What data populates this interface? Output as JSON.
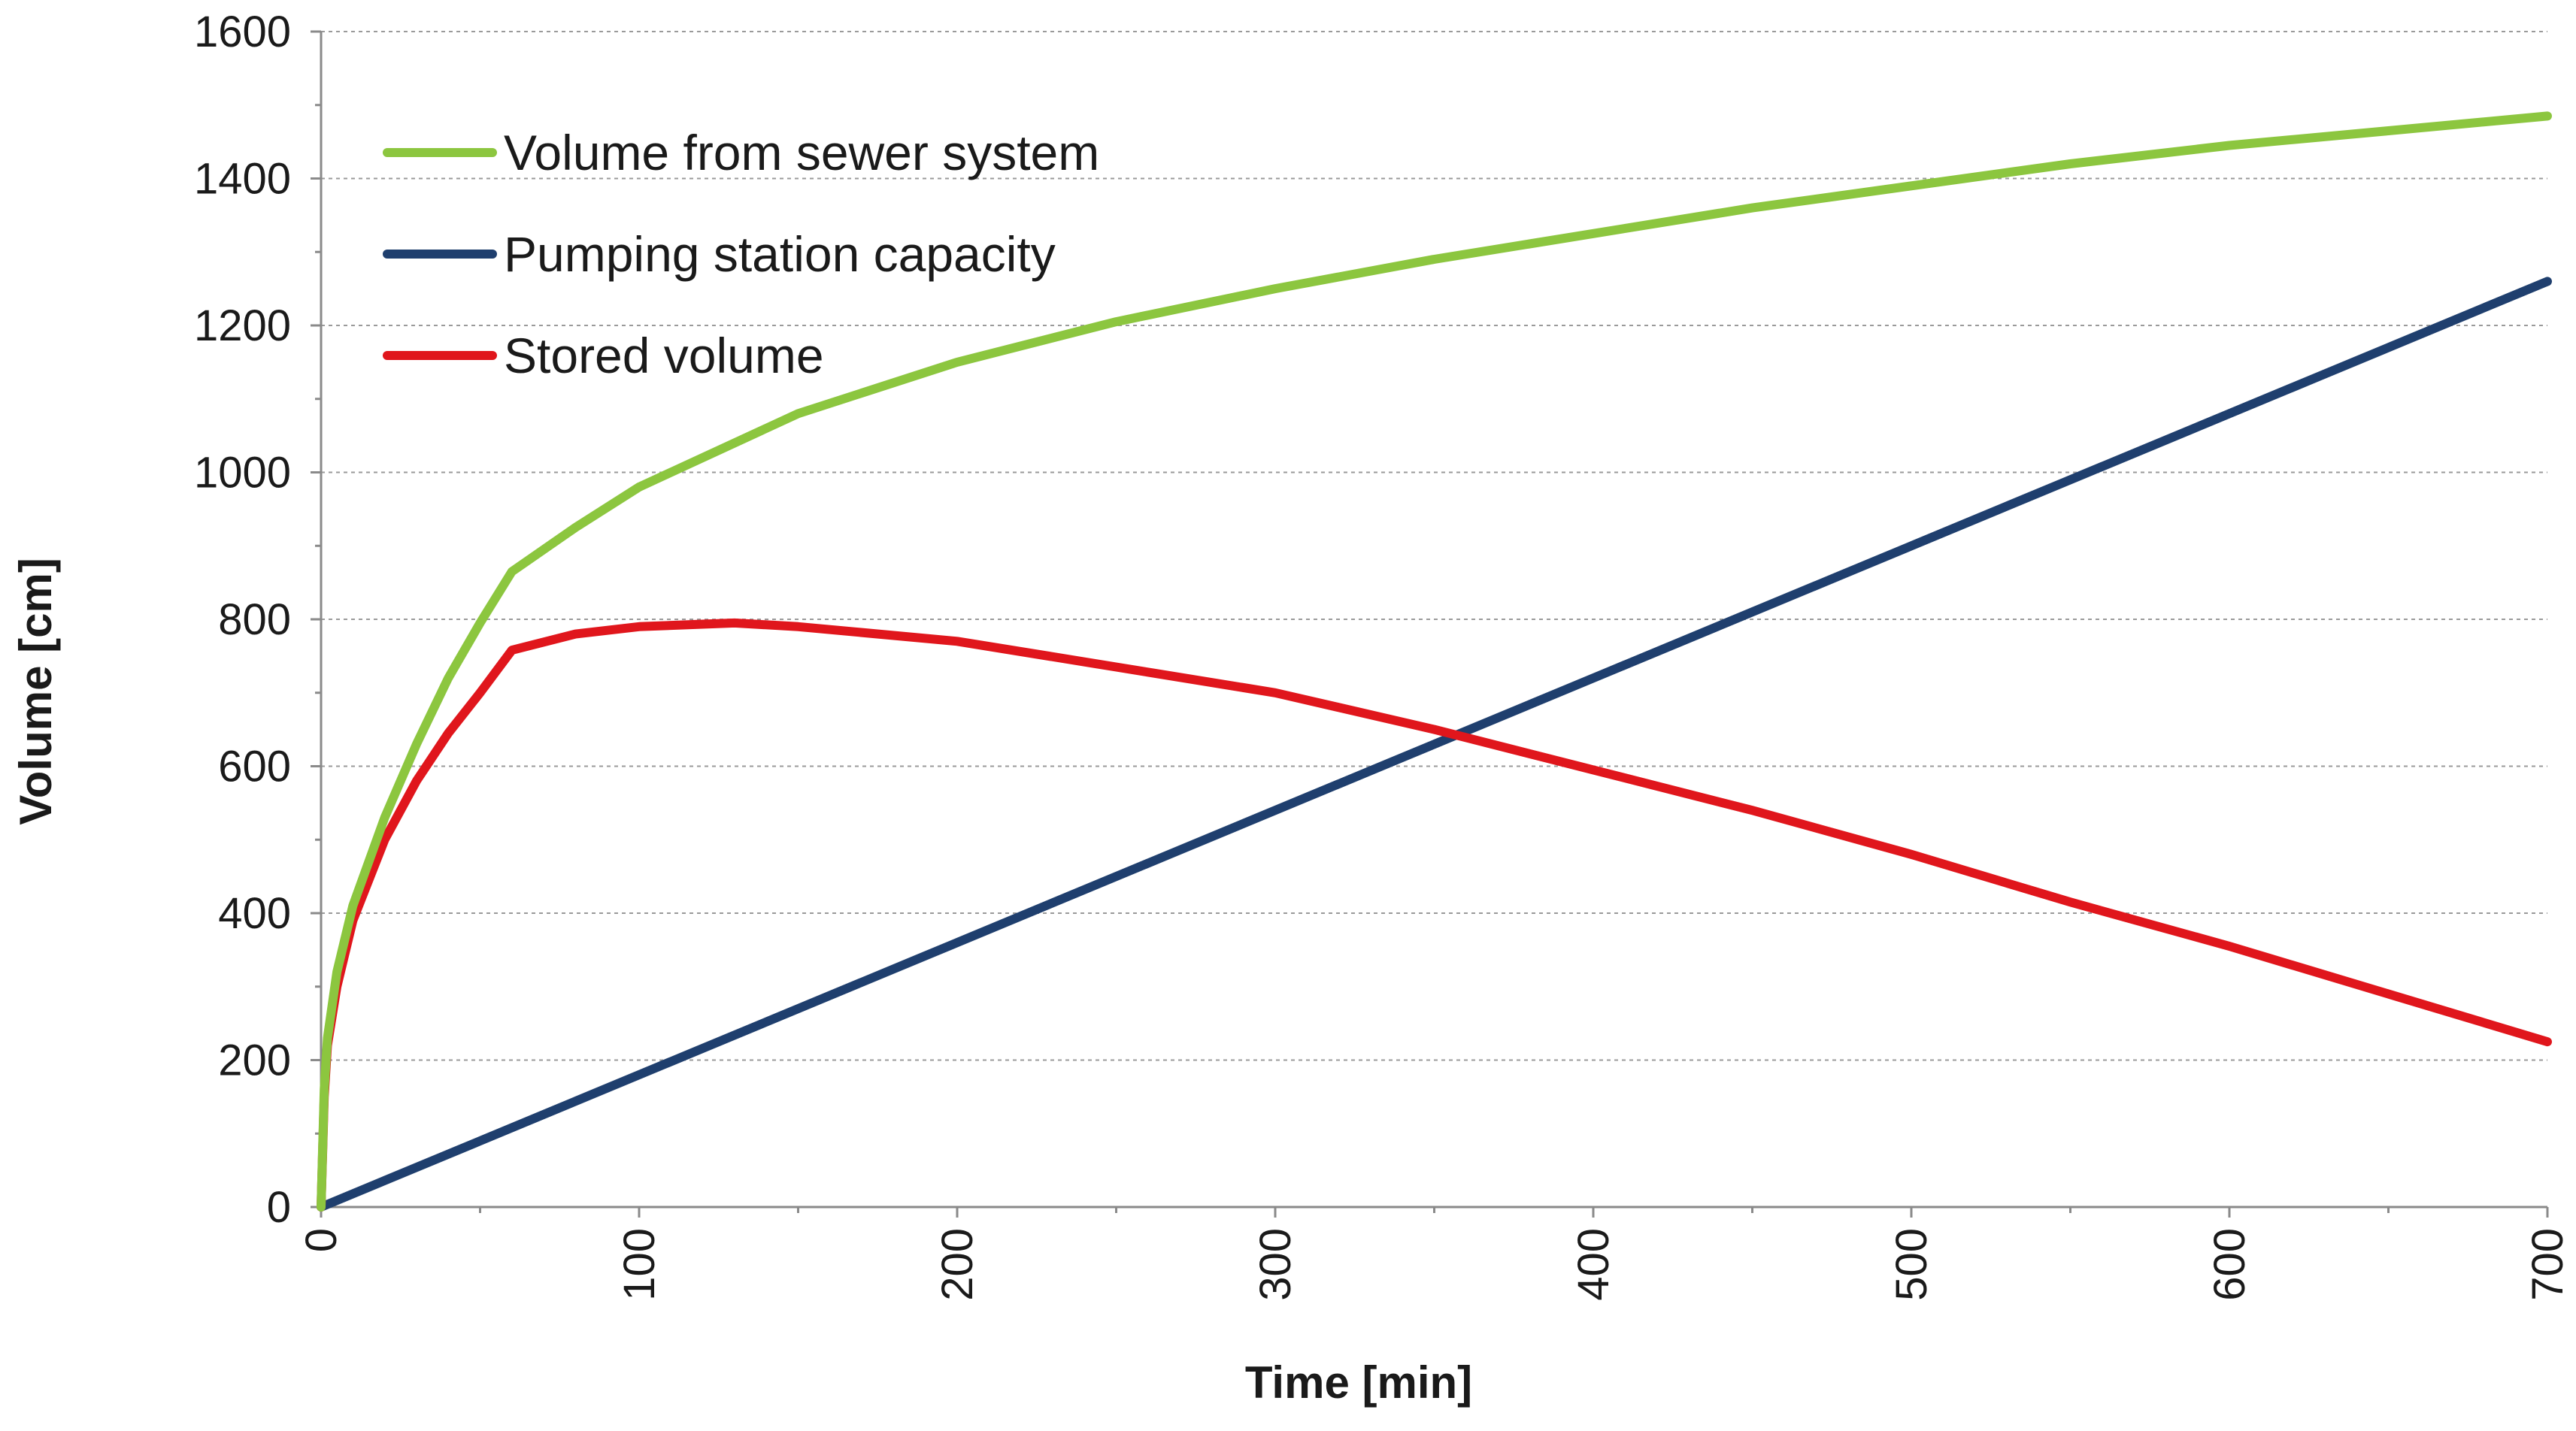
{
  "chart_data": {
    "type": "line",
    "title": "",
    "xlabel": "Time [min]",
    "ylabel": "Volume [cm]",
    "xlim": [
      0,
      700
    ],
    "ylim": [
      0,
      1600
    ],
    "x_ticks": [
      0,
      100,
      200,
      300,
      400,
      500,
      600,
      700
    ],
    "y_ticks": [
      0,
      200,
      400,
      600,
      800,
      1000,
      1200,
      1400,
      1600
    ],
    "grid": true,
    "legend_position": "top-left",
    "series": [
      {
        "name": "Volume from sewer system",
        "color": "#8cc63f",
        "x": [
          0,
          1,
          2,
          5,
          10,
          20,
          30,
          40,
          50,
          60,
          80,
          100,
          150,
          200,
          250,
          300,
          350,
          400,
          450,
          500,
          550,
          600,
          650,
          700
        ],
        "y": [
          0,
          160,
          230,
          320,
          410,
          530,
          630,
          720,
          795,
          865,
          925,
          980,
          1080,
          1150,
          1205,
          1250,
          1290,
          1325,
          1360,
          1390,
          1420,
          1445,
          1465,
          1485
        ]
      },
      {
        "name": "Pumping station capacity",
        "color": "#1f3f6e",
        "x": [
          0,
          700
        ],
        "y": [
          0,
          1260
        ]
      },
      {
        "name": "Stored volume",
        "color": "#e0161c",
        "x": [
          0,
          1,
          2,
          5,
          10,
          20,
          30,
          40,
          50,
          60,
          80,
          100,
          130,
          150,
          200,
          250,
          300,
          350,
          400,
          450,
          500,
          550,
          600,
          650,
          700
        ],
        "y": [
          0,
          150,
          220,
          300,
          390,
          500,
          580,
          645,
          700,
          758,
          780,
          790,
          795,
          790,
          770,
          735,
          700,
          650,
          595,
          540,
          480,
          415,
          355,
          290,
          225
        ]
      }
    ]
  }
}
